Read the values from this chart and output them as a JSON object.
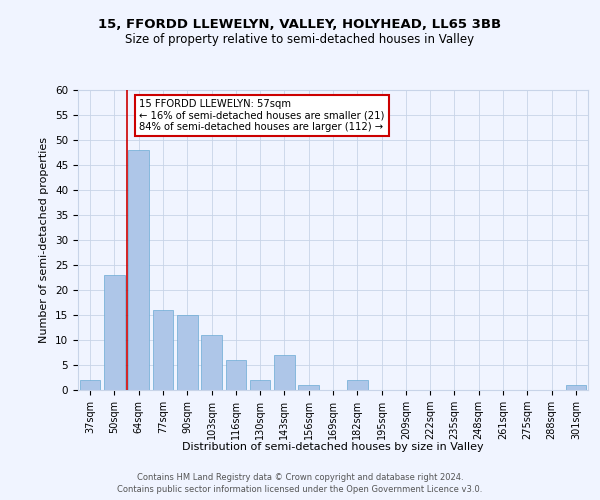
{
  "title1": "15, FFORDD LLEWELYN, VALLEY, HOLYHEAD, LL65 3BB",
  "title2": "Size of property relative to semi-detached houses in Valley",
  "xlabel": "Distribution of semi-detached houses by size in Valley",
  "ylabel": "Number of semi-detached properties",
  "categories": [
    "37sqm",
    "50sqm",
    "64sqm",
    "77sqm",
    "90sqm",
    "103sqm",
    "116sqm",
    "130sqm",
    "143sqm",
    "156sqm",
    "169sqm",
    "182sqm",
    "195sqm",
    "209sqm",
    "222sqm",
    "235sqm",
    "248sqm",
    "261sqm",
    "275sqm",
    "288sqm",
    "301sqm"
  ],
  "values": [
    2,
    23,
    48,
    16,
    15,
    11,
    6,
    2,
    7,
    1,
    0,
    2,
    0,
    0,
    0,
    0,
    0,
    0,
    0,
    0,
    1
  ],
  "bar_color": "#aec6e8",
  "bar_edge_color": "#6aaad4",
  "vline_x": 1.5,
  "annotation_line1": "15 FFORDD LLEWELYN: 57sqm",
  "annotation_line2": "← 16% of semi-detached houses are smaller (21)",
  "annotation_line3": "84% of semi-detached houses are larger (112) →",
  "annotation_box_color": "#ffffff",
  "annotation_box_edge": "#cc0000",
  "vline_color": "#cc0000",
  "ylim": [
    0,
    60
  ],
  "yticks": [
    0,
    5,
    10,
    15,
    20,
    25,
    30,
    35,
    40,
    45,
    50,
    55,
    60
  ],
  "footer1": "Contains HM Land Registry data © Crown copyright and database right 2024.",
  "footer2": "Contains public sector information licensed under the Open Government Licence v3.0.",
  "background_color": "#f0f4ff",
  "grid_color": "#c8d4e8"
}
